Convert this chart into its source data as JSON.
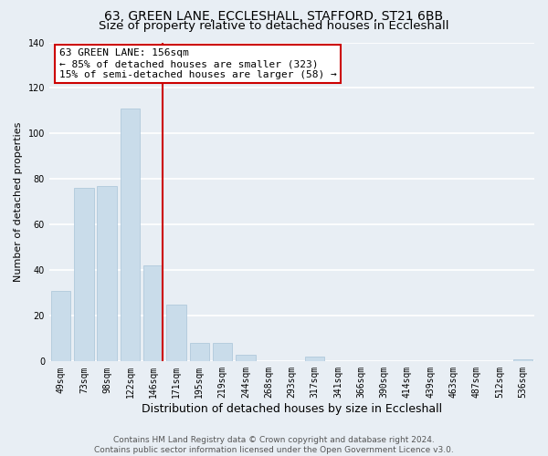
{
  "title": "63, GREEN LANE, ECCLESHALL, STAFFORD, ST21 6BB",
  "subtitle": "Size of property relative to detached houses in Eccleshall",
  "xlabel": "Distribution of detached houses by size in Eccleshall",
  "ylabel": "Number of detached properties",
  "bar_labels": [
    "49sqm",
    "73sqm",
    "98sqm",
    "122sqm",
    "146sqm",
    "171sqm",
    "195sqm",
    "219sqm",
    "244sqm",
    "268sqm",
    "293sqm",
    "317sqm",
    "341sqm",
    "366sqm",
    "390sqm",
    "414sqm",
    "439sqm",
    "463sqm",
    "487sqm",
    "512sqm",
    "536sqm"
  ],
  "bar_values": [
    31,
    76,
    77,
    111,
    42,
    25,
    8,
    8,
    3,
    0,
    0,
    2,
    0,
    0,
    0,
    0,
    0,
    0,
    0,
    0,
    1
  ],
  "bar_color": "#c9dcea",
  "bar_edge_color": "#a8c4d8",
  "red_line_color": "#cc0000",
  "ylim": [
    0,
    140
  ],
  "yticks": [
    0,
    20,
    40,
    60,
    80,
    100,
    120,
    140
  ],
  "annotation_title": "63 GREEN LANE: 156sqm",
  "annotation_line1": "← 85% of detached houses are smaller (323)",
  "annotation_line2": "15% of semi-detached houses are larger (58) →",
  "annotation_box_facecolor": "#ffffff",
  "annotation_box_edgecolor": "#cc0000",
  "footer_line1": "Contains HM Land Registry data © Crown copyright and database right 2024.",
  "footer_line2": "Contains public sector information licensed under the Open Government Licence v3.0.",
  "title_fontsize": 10,
  "subtitle_fontsize": 9.5,
  "xlabel_fontsize": 9,
  "ylabel_fontsize": 8,
  "tick_fontsize": 7,
  "annotation_fontsize": 8,
  "footer_fontsize": 6.5,
  "background_color": "#e8eef4",
  "grid_color": "#ffffff",
  "figure_background": "#e8eef4"
}
